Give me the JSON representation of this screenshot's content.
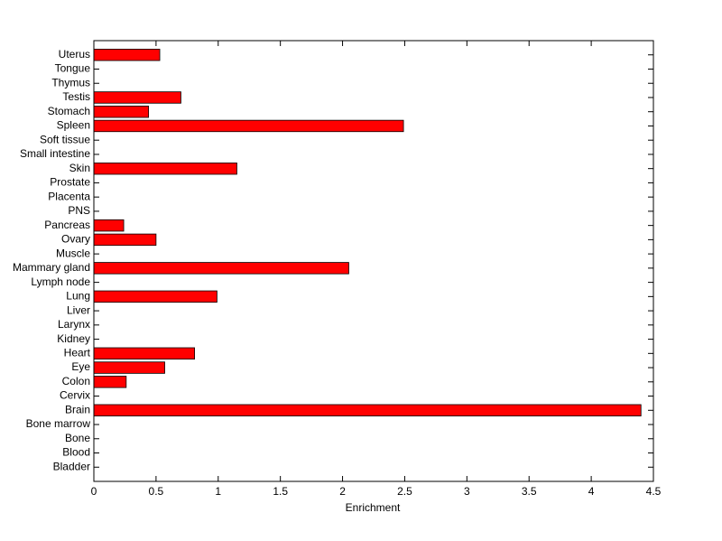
{
  "chart_data": {
    "type": "barh",
    "x_label": "Enrichment",
    "categories": [
      "Bladder",
      "Blood",
      "Bone",
      "Bone marrow",
      "Brain",
      "Cervix",
      "Colon",
      "Eye",
      "Heart",
      "Kidney",
      "Larynx",
      "Liver",
      "Lung",
      "Lymph node",
      "Mammary gland",
      "Muscle",
      "Ovary",
      "Pancreas",
      "PNS",
      "Placenta",
      "Prostate",
      "Skin",
      "Small intestine",
      "Soft tissue",
      "Spleen",
      "Stomach",
      "Testis",
      "Thymus",
      "Tongue",
      "Uterus"
    ],
    "values": [
      0,
      0,
      0,
      0,
      4.4,
      0,
      0.26,
      0.57,
      0.81,
      0,
      0,
      0,
      0.99,
      0,
      2.05,
      0,
      0.5,
      0.24,
      0,
      0,
      0,
      1.15,
      0,
      0,
      2.49,
      0.44,
      0.7,
      0,
      0,
      0.53
    ],
    "color": "#ff0000",
    "xlim": [
      0,
      4.5
    ],
    "xticks": [
      0,
      0.5,
      1,
      1.5,
      2,
      2.5,
      3,
      3.5,
      4,
      4.5
    ]
  }
}
